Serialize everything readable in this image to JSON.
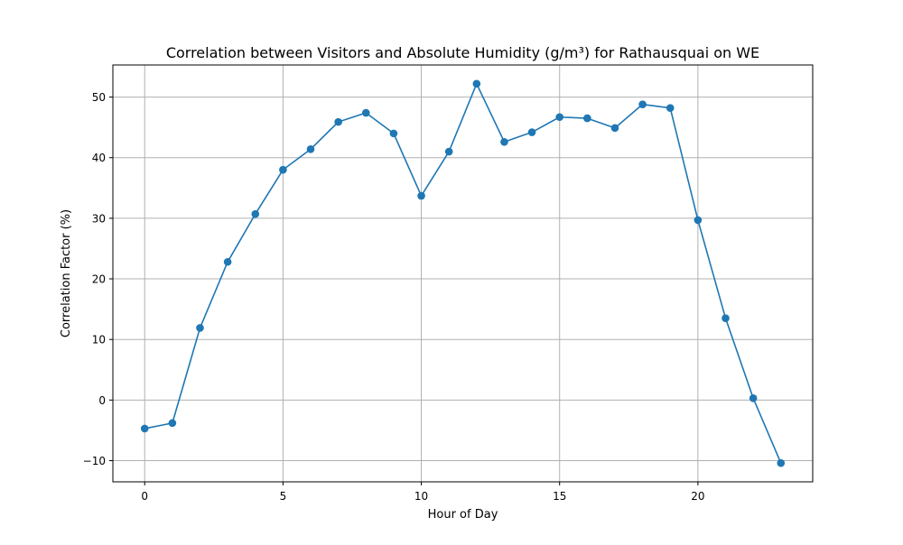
{
  "chart_data": {
    "type": "line",
    "title": "Correlation between Visitors and Absolute Humidity (g/m³) for Rathausquai on WE",
    "xlabel": "Hour of Day",
    "ylabel": "Correlation Factor (%)",
    "x": [
      0,
      1,
      2,
      3,
      4,
      5,
      6,
      7,
      8,
      9,
      10,
      11,
      12,
      13,
      14,
      15,
      16,
      17,
      18,
      19,
      20,
      21,
      22,
      23
    ],
    "series": [
      {
        "values": [
          -4.7,
          -3.8,
          11.9,
          22.8,
          30.7,
          38.0,
          41.4,
          45.9,
          47.4,
          44.0,
          33.7,
          41.0,
          52.2,
          42.6,
          44.2,
          46.7,
          46.5,
          44.9,
          48.8,
          48.2,
          29.7,
          13.5,
          0.3,
          -10.4
        ],
        "color": "#1f77b4"
      }
    ],
    "xlim": [
      -1.15,
      24.15
    ],
    "ylim": [
      -13.5,
      55.3
    ],
    "xticks": [
      0,
      5,
      10,
      15,
      20
    ],
    "yticks": [
      -10,
      0,
      10,
      20,
      30,
      40,
      50
    ],
    "xtick_labels": [
      "0",
      "5",
      "10",
      "15",
      "20"
    ],
    "ytick_labels": [
      "−10",
      "0",
      "10",
      "20",
      "30",
      "40",
      "50"
    ],
    "grid": true,
    "markers": "circle"
  }
}
